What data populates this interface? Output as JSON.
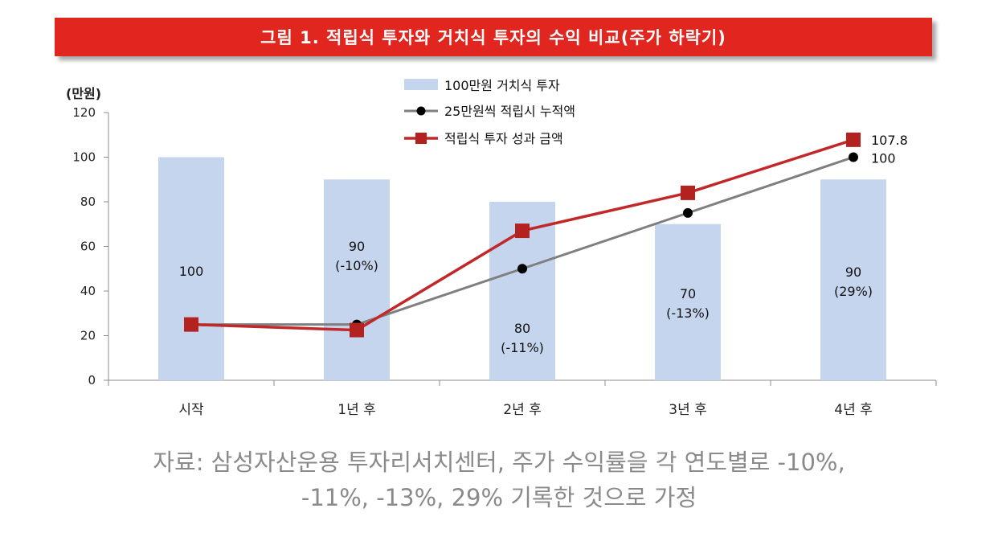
{
  "chart_data": {
    "type": "bar+line",
    "title": "그림 1. 적립식 투자와 거치식 투자의 수익 비교(주가 하락기)",
    "ylabel": "(만원)",
    "ylim": [
      0,
      120
    ],
    "yticks": [
      0,
      20,
      40,
      60,
      80,
      100,
      120
    ],
    "categories": [
      "시작",
      "1년 후",
      "2년 후",
      "3년 후",
      "4년 후"
    ],
    "colors": {
      "bar": "#c6d5ee",
      "gray_line": "#7f7f7f",
      "red_line": "#c0282a",
      "dot": "#000000",
      "square": "#b3221f"
    },
    "legend_position": "top-center",
    "series": [
      {
        "name": "100만원 거치식 투자",
        "kind": "bar",
        "values": [
          100,
          90,
          80,
          70,
          90
        ],
        "labels": [
          [
            "100"
          ],
          [
            "90",
            "(-10%)"
          ],
          [
            "80",
            "(-11%)"
          ],
          [
            "70",
            "(-13%)"
          ],
          [
            "90",
            "(29%)"
          ]
        ]
      },
      {
        "name": "25만원씩 적립시 누적액",
        "kind": "line",
        "marker": "circle",
        "values": [
          25,
          25,
          50,
          75,
          100
        ]
      },
      {
        "name": "적립식 투자 성과 금액",
        "kind": "line",
        "marker": "square",
        "values": [
          25,
          22.5,
          67,
          84,
          107.8
        ]
      }
    ],
    "end_labels": {
      "red": "107.8",
      "gray": "100"
    }
  },
  "caption": {
    "line1": "자료: 삼성자산운용 투자리서치센터, 주가 수익률을 각 연도별로 -10%,",
    "line2": "-11%, -13%, 29% 기록한 것으로 가정"
  }
}
